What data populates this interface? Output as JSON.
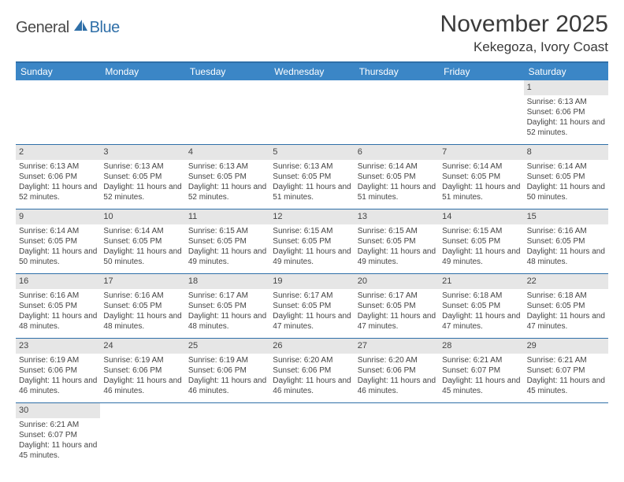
{
  "logo": {
    "general": "General",
    "blue": "Blue"
  },
  "title": "November 2025",
  "location": "Kekegoza, Ivory Coast",
  "colors": {
    "header_bg": "#3b86c6",
    "border": "#2f6fa8",
    "daynum_bg": "#e6e6e6",
    "text": "#444444"
  },
  "day_headers": [
    "Sunday",
    "Monday",
    "Tuesday",
    "Wednesday",
    "Thursday",
    "Friday",
    "Saturday"
  ],
  "weeks": [
    [
      {
        "blank": true
      },
      {
        "blank": true
      },
      {
        "blank": true
      },
      {
        "blank": true
      },
      {
        "blank": true
      },
      {
        "blank": true
      },
      {
        "day": 1,
        "sunrise": "6:13 AM",
        "sunset": "6:06 PM",
        "daylight": "11 hours and 52 minutes."
      }
    ],
    [
      {
        "day": 2,
        "sunrise": "6:13 AM",
        "sunset": "6:06 PM",
        "daylight": "11 hours and 52 minutes."
      },
      {
        "day": 3,
        "sunrise": "6:13 AM",
        "sunset": "6:05 PM",
        "daylight": "11 hours and 52 minutes."
      },
      {
        "day": 4,
        "sunrise": "6:13 AM",
        "sunset": "6:05 PM",
        "daylight": "11 hours and 52 minutes."
      },
      {
        "day": 5,
        "sunrise": "6:13 AM",
        "sunset": "6:05 PM",
        "daylight": "11 hours and 51 minutes."
      },
      {
        "day": 6,
        "sunrise": "6:14 AM",
        "sunset": "6:05 PM",
        "daylight": "11 hours and 51 minutes."
      },
      {
        "day": 7,
        "sunrise": "6:14 AM",
        "sunset": "6:05 PM",
        "daylight": "11 hours and 51 minutes."
      },
      {
        "day": 8,
        "sunrise": "6:14 AM",
        "sunset": "6:05 PM",
        "daylight": "11 hours and 50 minutes."
      }
    ],
    [
      {
        "day": 9,
        "sunrise": "6:14 AM",
        "sunset": "6:05 PM",
        "daylight": "11 hours and 50 minutes."
      },
      {
        "day": 10,
        "sunrise": "6:14 AM",
        "sunset": "6:05 PM",
        "daylight": "11 hours and 50 minutes."
      },
      {
        "day": 11,
        "sunrise": "6:15 AM",
        "sunset": "6:05 PM",
        "daylight": "11 hours and 49 minutes."
      },
      {
        "day": 12,
        "sunrise": "6:15 AM",
        "sunset": "6:05 PM",
        "daylight": "11 hours and 49 minutes."
      },
      {
        "day": 13,
        "sunrise": "6:15 AM",
        "sunset": "6:05 PM",
        "daylight": "11 hours and 49 minutes."
      },
      {
        "day": 14,
        "sunrise": "6:15 AM",
        "sunset": "6:05 PM",
        "daylight": "11 hours and 49 minutes."
      },
      {
        "day": 15,
        "sunrise": "6:16 AM",
        "sunset": "6:05 PM",
        "daylight": "11 hours and 48 minutes."
      }
    ],
    [
      {
        "day": 16,
        "sunrise": "6:16 AM",
        "sunset": "6:05 PM",
        "daylight": "11 hours and 48 minutes."
      },
      {
        "day": 17,
        "sunrise": "6:16 AM",
        "sunset": "6:05 PM",
        "daylight": "11 hours and 48 minutes."
      },
      {
        "day": 18,
        "sunrise": "6:17 AM",
        "sunset": "6:05 PM",
        "daylight": "11 hours and 48 minutes."
      },
      {
        "day": 19,
        "sunrise": "6:17 AM",
        "sunset": "6:05 PM",
        "daylight": "11 hours and 47 minutes."
      },
      {
        "day": 20,
        "sunrise": "6:17 AM",
        "sunset": "6:05 PM",
        "daylight": "11 hours and 47 minutes."
      },
      {
        "day": 21,
        "sunrise": "6:18 AM",
        "sunset": "6:05 PM",
        "daylight": "11 hours and 47 minutes."
      },
      {
        "day": 22,
        "sunrise": "6:18 AM",
        "sunset": "6:05 PM",
        "daylight": "11 hours and 47 minutes."
      }
    ],
    [
      {
        "day": 23,
        "sunrise": "6:19 AM",
        "sunset": "6:06 PM",
        "daylight": "11 hours and 46 minutes."
      },
      {
        "day": 24,
        "sunrise": "6:19 AM",
        "sunset": "6:06 PM",
        "daylight": "11 hours and 46 minutes."
      },
      {
        "day": 25,
        "sunrise": "6:19 AM",
        "sunset": "6:06 PM",
        "daylight": "11 hours and 46 minutes."
      },
      {
        "day": 26,
        "sunrise": "6:20 AM",
        "sunset": "6:06 PM",
        "daylight": "11 hours and 46 minutes."
      },
      {
        "day": 27,
        "sunrise": "6:20 AM",
        "sunset": "6:06 PM",
        "daylight": "11 hours and 46 minutes."
      },
      {
        "day": 28,
        "sunrise": "6:21 AM",
        "sunset": "6:07 PM",
        "daylight": "11 hours and 45 minutes."
      },
      {
        "day": 29,
        "sunrise": "6:21 AM",
        "sunset": "6:07 PM",
        "daylight": "11 hours and 45 minutes."
      }
    ],
    [
      {
        "day": 30,
        "sunrise": "6:21 AM",
        "sunset": "6:07 PM",
        "daylight": "11 hours and 45 minutes."
      },
      {
        "blank": true
      },
      {
        "blank": true
      },
      {
        "blank": true
      },
      {
        "blank": true
      },
      {
        "blank": true
      },
      {
        "blank": true
      }
    ]
  ],
  "labels": {
    "sunrise": "Sunrise:",
    "sunset": "Sunset:",
    "daylight": "Daylight:"
  }
}
